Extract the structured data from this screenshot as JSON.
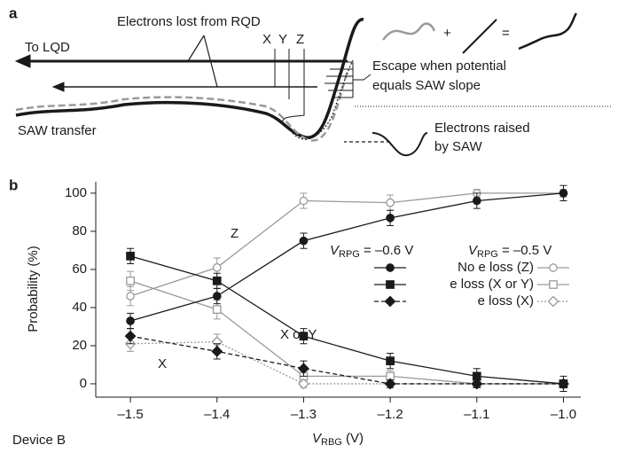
{
  "diagram": {
    "panel_label": "a",
    "labels": {
      "lost": "Electrons lost from RQD",
      "to_lqd": "To LQD",
      "x": "X",
      "y": "Y",
      "z": "Z",
      "saw_transfer": "SAW transfer",
      "escape_1": "Escape when potential",
      "escape_2": "equals SAW slope",
      "raised_1": "Electrons raised",
      "raised_2": "by SAW",
      "plus": "+",
      "equals": "="
    }
  },
  "chart_data": {
    "type": "line",
    "panel_label": "b",
    "footnote": "Device B",
    "x_label": {
      "symbol": "V",
      "subscript": "RBG",
      "text": " (V)"
    },
    "y_label": "Probability (%)",
    "x": [
      -1.5,
      -1.4,
      -1.3,
      -1.2,
      -1.1,
      -1.0
    ],
    "xlim": [
      -1.54,
      -0.98
    ],
    "ylim": [
      -7,
      106
    ],
    "xticks": [
      {
        "value": -1.5,
        "label": "–1.5"
      },
      {
        "value": -1.4,
        "label": "–1.4"
      },
      {
        "value": -1.3,
        "label": "–1.3"
      },
      {
        "value": -1.2,
        "label": "–1.2"
      },
      {
        "value": -1.1,
        "label": "–1.1"
      },
      {
        "value": -1.0,
        "label": "–1.0"
      }
    ],
    "yticks": [
      0,
      20,
      40,
      60,
      80,
      100
    ],
    "series_names": [
      "No e loss (Z)",
      "e loss (X or Y)",
      "e loss (X)"
    ],
    "markers": [
      "circle",
      "square",
      "diamond"
    ],
    "groups": [
      {
        "label": {
          "symbol": "V",
          "subscript": "RPG",
          "text": " = –0.6 V"
        },
        "color": "#1a1a1a",
        "filled": true,
        "series": [
          {
            "values": [
              33,
              46,
              75,
              87,
              96,
              100
            ],
            "errors": [
              4,
              4,
              4,
              4,
              4,
              4
            ],
            "dash": "solid"
          },
          {
            "values": [
              67,
              54,
              25,
              12,
              4,
              0
            ],
            "errors": [
              4,
              4,
              4,
              4,
              4,
              4
            ],
            "dash": "solid"
          },
          {
            "values": [
              25,
              17,
              8,
              0,
              0,
              0
            ],
            "errors": [
              4,
              4,
              4,
              2,
              2,
              2
            ],
            "dash": "dashed"
          }
        ]
      },
      {
        "label": {
          "symbol": "V",
          "subscript": "RPG",
          "text": " = –0.5 V"
        },
        "color": "#9a9a9a",
        "filled": false,
        "series": [
          {
            "values": [
              46,
              61,
              96,
              95,
              100,
              100
            ],
            "errors": [
              5,
              5,
              4,
              4,
              2,
              2
            ],
            "dash": "solid"
          },
          {
            "values": [
              54,
              39,
              4,
              4,
              0,
              0
            ],
            "errors": [
              5,
              5,
              3,
              3,
              2,
              2
            ],
            "dash": "solid"
          },
          {
            "values": [
              21,
              22,
              0,
              0,
              0,
              0
            ],
            "errors": [
              4,
              4,
              2,
              2,
              2,
              2
            ],
            "dash": "dotted"
          }
        ]
      }
    ],
    "annotations": [
      "Z",
      "X or Y",
      "X"
    ]
  }
}
